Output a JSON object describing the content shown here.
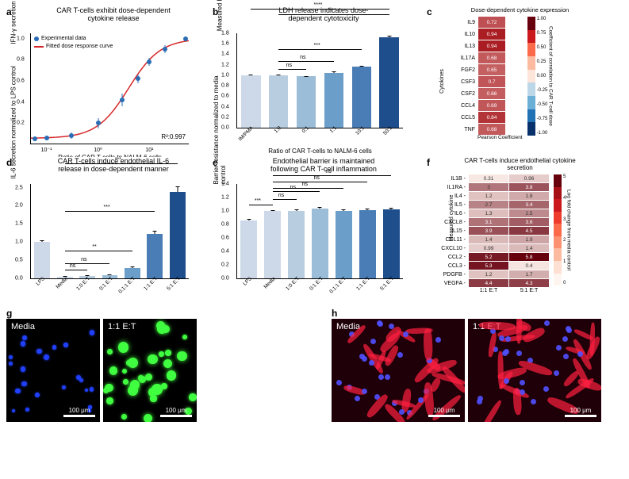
{
  "panel_a": {
    "label": "a",
    "title": "CAR T-cells exhibit dose-dependent\ncytokine release",
    "type": "scatter_fit",
    "xlabel": "Ratio of CAR T-cells to NALM-6 cells",
    "ylabel": "IFN-γ secretion normalized to max",
    "xscale": "log",
    "xlim": [
      0.05,
      60
    ],
    "ylim": [
      0,
      1.05
    ],
    "xticks": [
      "10⁻¹",
      "10⁰",
      "10¹"
    ],
    "yticks": [
      "0.2",
      "0.4",
      "0.6",
      "0.8",
      "1.0"
    ],
    "points_x": [
      0.06,
      0.1,
      0.3,
      1,
      3,
      6,
      10,
      20,
      50
    ],
    "points_y": [
      0.05,
      0.06,
      0.08,
      0.2,
      0.42,
      0.62,
      0.78,
      0.9,
      1.0
    ],
    "err_y": [
      0.02,
      0.02,
      0.03,
      0.05,
      0.06,
      0.04,
      0.04,
      0.04,
      0.02
    ],
    "point_color": "#2a6db5",
    "curve_color": "#d62728",
    "r2": "R²:0.997",
    "legend": {
      "data": "Experimental data",
      "fit": "Fitted dose response curve"
    }
  },
  "panel_b": {
    "label": "b",
    "title": "LDH release indicates dose-\ndependent cytotoxicity",
    "type": "bar",
    "xlabel": "Ratio of CAR T-cells to NALM-6 cells",
    "ylabel": "Measured LDH normalized to IM/PMA",
    "categories": [
      "IM/PMA",
      "1:0",
      "0:1",
      "1:1",
      "10:1",
      "50:1"
    ],
    "values": [
      1.0,
      1.0,
      0.98,
      1.05,
      1.16,
      1.72
    ],
    "errors": [
      0.02,
      0.02,
      0.01,
      0.02,
      0.02,
      0.03
    ],
    "bar_colors": [
      "#cdd9e8",
      "#b8cde0",
      "#9bbdd8",
      "#6b9ec9",
      "#4a7db5",
      "#1f4e8c"
    ],
    "ylim": [
      0,
      1.8
    ],
    "ytick_step": 0.2,
    "significance": [
      {
        "from": 1,
        "to": 2,
        "label": "ns"
      },
      {
        "from": 1,
        "to": 3,
        "label": "ns"
      },
      {
        "from": 1,
        "to": 4,
        "label": "***"
      },
      {
        "from": 1,
        "to": 5,
        "label": "****"
      },
      {
        "from": 0,
        "to": 5,
        "label": "****"
      }
    ]
  },
  "panel_c": {
    "label": "c",
    "title": "Dose-dependent cytokine expression",
    "type": "heatmap",
    "ylabel": "Cytokines",
    "cb_title": "Coefficient of correlation to CAR T-cell dose",
    "rows": [
      "IL9",
      "IL10",
      "IL13",
      "IL17A",
      "FGF2",
      "CSF3",
      "CSF2",
      "CCL4",
      "CCL5",
      "TNF"
    ],
    "col_label": "Pearson Coefficient",
    "values": [
      0.72,
      0.94,
      0.94,
      0.68,
      0.65,
      0.7,
      0.66,
      0.69,
      0.84,
      0.68
    ],
    "cmap_min": -1.0,
    "cmap_max": 1.0,
    "cmap_ticks": [
      "1.00",
      "0.75",
      "0.50",
      "0.25",
      "0.00",
      "-0.25",
      "-0.50",
      "-0.75",
      "-1.00"
    ],
    "cmap_colors": [
      "#67000d",
      "#cb181d",
      "#fb6a4a",
      "#fcbba1",
      "#fee5d9",
      "#bcd7e8",
      "#6baed6",
      "#2171b5",
      "#08306b"
    ]
  },
  "panel_d": {
    "label": "d",
    "title": "CAR T-cells induce endothelial IL-6\nrelease in dose-dependent manner",
    "type": "bar",
    "ylabel": "IL-6 secretion normalized to LPS control",
    "categories": [
      "LPS",
      "Media",
      "1:0 E:T",
      "0:1 E:T",
      "0.1:1 E:T",
      "1:1 E:T",
      "5:1 E:T"
    ],
    "values": [
      1.0,
      0.05,
      0.06,
      0.08,
      0.28,
      1.22,
      2.38
    ],
    "errors": [
      0.05,
      0.02,
      0.02,
      0.02,
      0.04,
      0.1,
      0.15
    ],
    "bar_colors": [
      "#cdd9e8",
      "#cdd9e8",
      "#b8cde0",
      "#9bbdd8",
      "#6b9ec9",
      "#4a7db5",
      "#1f4e8c"
    ],
    "ylim": [
      0,
      2.6
    ],
    "ytick_step": 0.5,
    "significance": [
      {
        "from": 1,
        "to": 2,
        "label": "ns"
      },
      {
        "from": 1,
        "to": 3,
        "label": "ns"
      },
      {
        "from": 1,
        "to": 4,
        "label": "**"
      },
      {
        "from": 1,
        "to": 5,
        "label": "***"
      },
      {
        "from": 1,
        "to": 6,
        "label": "***"
      }
    ]
  },
  "panel_e": {
    "label": "e",
    "title": "Endothelial barrier is maintained\nfollowing CAR T-cell inflammation",
    "type": "bar",
    "ylabel": "Barrier resistance normalized to media\ncontrol",
    "categories": [
      "LPS",
      "Media",
      "1:0 E:T",
      "0:1 E:T",
      "0.1:1 E:T",
      "1:1 E:T",
      "5:1 E:T"
    ],
    "values": [
      0.86,
      1.0,
      1.0,
      1.03,
      1.0,
      1.01,
      1.02
    ],
    "errors": [
      0.02,
      0.01,
      0.02,
      0.03,
      0.02,
      0.02,
      0.03
    ],
    "bar_colors": [
      "#cdd9e8",
      "#cdd9e8",
      "#b8cde0",
      "#9bbdd8",
      "#6b9ec9",
      "#4a7db5",
      "#1f4e8c"
    ],
    "ylim": [
      0,
      1.4
    ],
    "ytick_step": 0.2,
    "significance": [
      {
        "from": 0,
        "to": 1,
        "label": "***"
      },
      {
        "from": 1,
        "to": 2,
        "label": "ns"
      },
      {
        "from": 1,
        "to": 3,
        "label": "ns"
      },
      {
        "from": 1,
        "to": 4,
        "label": "ns"
      },
      {
        "from": 1,
        "to": 5,
        "label": "ns"
      },
      {
        "from": 1,
        "to": 6,
        "label": "ns"
      }
    ]
  },
  "panel_f": {
    "label": "f",
    "title": "CAR T-cells induce endothelial cytokine\nsecretion",
    "type": "heatmap",
    "ylabel": "Measured cytokine",
    "cb_title": "Log fold change from media control",
    "rows": [
      "IL1B",
      "IL1RA",
      "IL4",
      "IL5",
      "IL6",
      "CXCL8",
      "IL15",
      "CCL11",
      "CXCL10",
      "CCL2",
      "CCL3",
      "PDGFB",
      "VEGFA"
    ],
    "cols": [
      "1:1 E:T",
      "5:1 E:T"
    ],
    "values": [
      [
        0.31,
        0.96
      ],
      [
        3.0,
        3.8
      ],
      [
        1.2,
        1.8
      ],
      [
        2.7,
        3.4
      ],
      [
        1.3,
        2.5
      ],
      [
        3.1,
        3.6
      ],
      [
        3.9,
        4.5
      ],
      [
        1.4,
        1.9
      ],
      [
        0.99,
        1.4
      ],
      [
        5.2,
        5.8
      ],
      [
        5.3,
        0.4
      ],
      [
        1.2,
        1.7
      ],
      [
        4.4,
        4.3
      ]
    ],
    "cmap_min": 0,
    "cmap_max": 5.8,
    "cmap_ticks": [
      "5",
      "4",
      "3",
      "2",
      "1",
      "0"
    ],
    "cmap_colors": [
      "#67000d",
      "#a50f15",
      "#cb181d",
      "#ef3b2c",
      "#fb6a4a",
      "#fc9272",
      "#fcbba1",
      "#fee0d2",
      "#fff5f0"
    ]
  },
  "panel_g": {
    "label": "g",
    "images": [
      {
        "label": "Media",
        "dot_color": "#2040ff",
        "bg": "#000000",
        "dot_count": 22,
        "dot_size": [
          4,
          7
        ]
      },
      {
        "label": "1:1 E:T",
        "dot_color": "#40ff40",
        "bg": "#000000",
        "dot_count": 34,
        "dot_size": [
          6,
          14
        ]
      }
    ],
    "scalebar_label": "100 μm"
  },
  "panel_h": {
    "label": "h",
    "images": [
      {
        "label": "Media",
        "fiber_color": "#ff2040",
        "nucleus_color": "#5050ff",
        "bg": "#200008",
        "fiber_count": 24
      },
      {
        "label": "1:1 E:T",
        "fiber_color": "#ff2040",
        "nucleus_color": "#5050ff",
        "bg": "#200008",
        "fiber_count": 24
      }
    ],
    "scalebar_label": "100 μm"
  }
}
